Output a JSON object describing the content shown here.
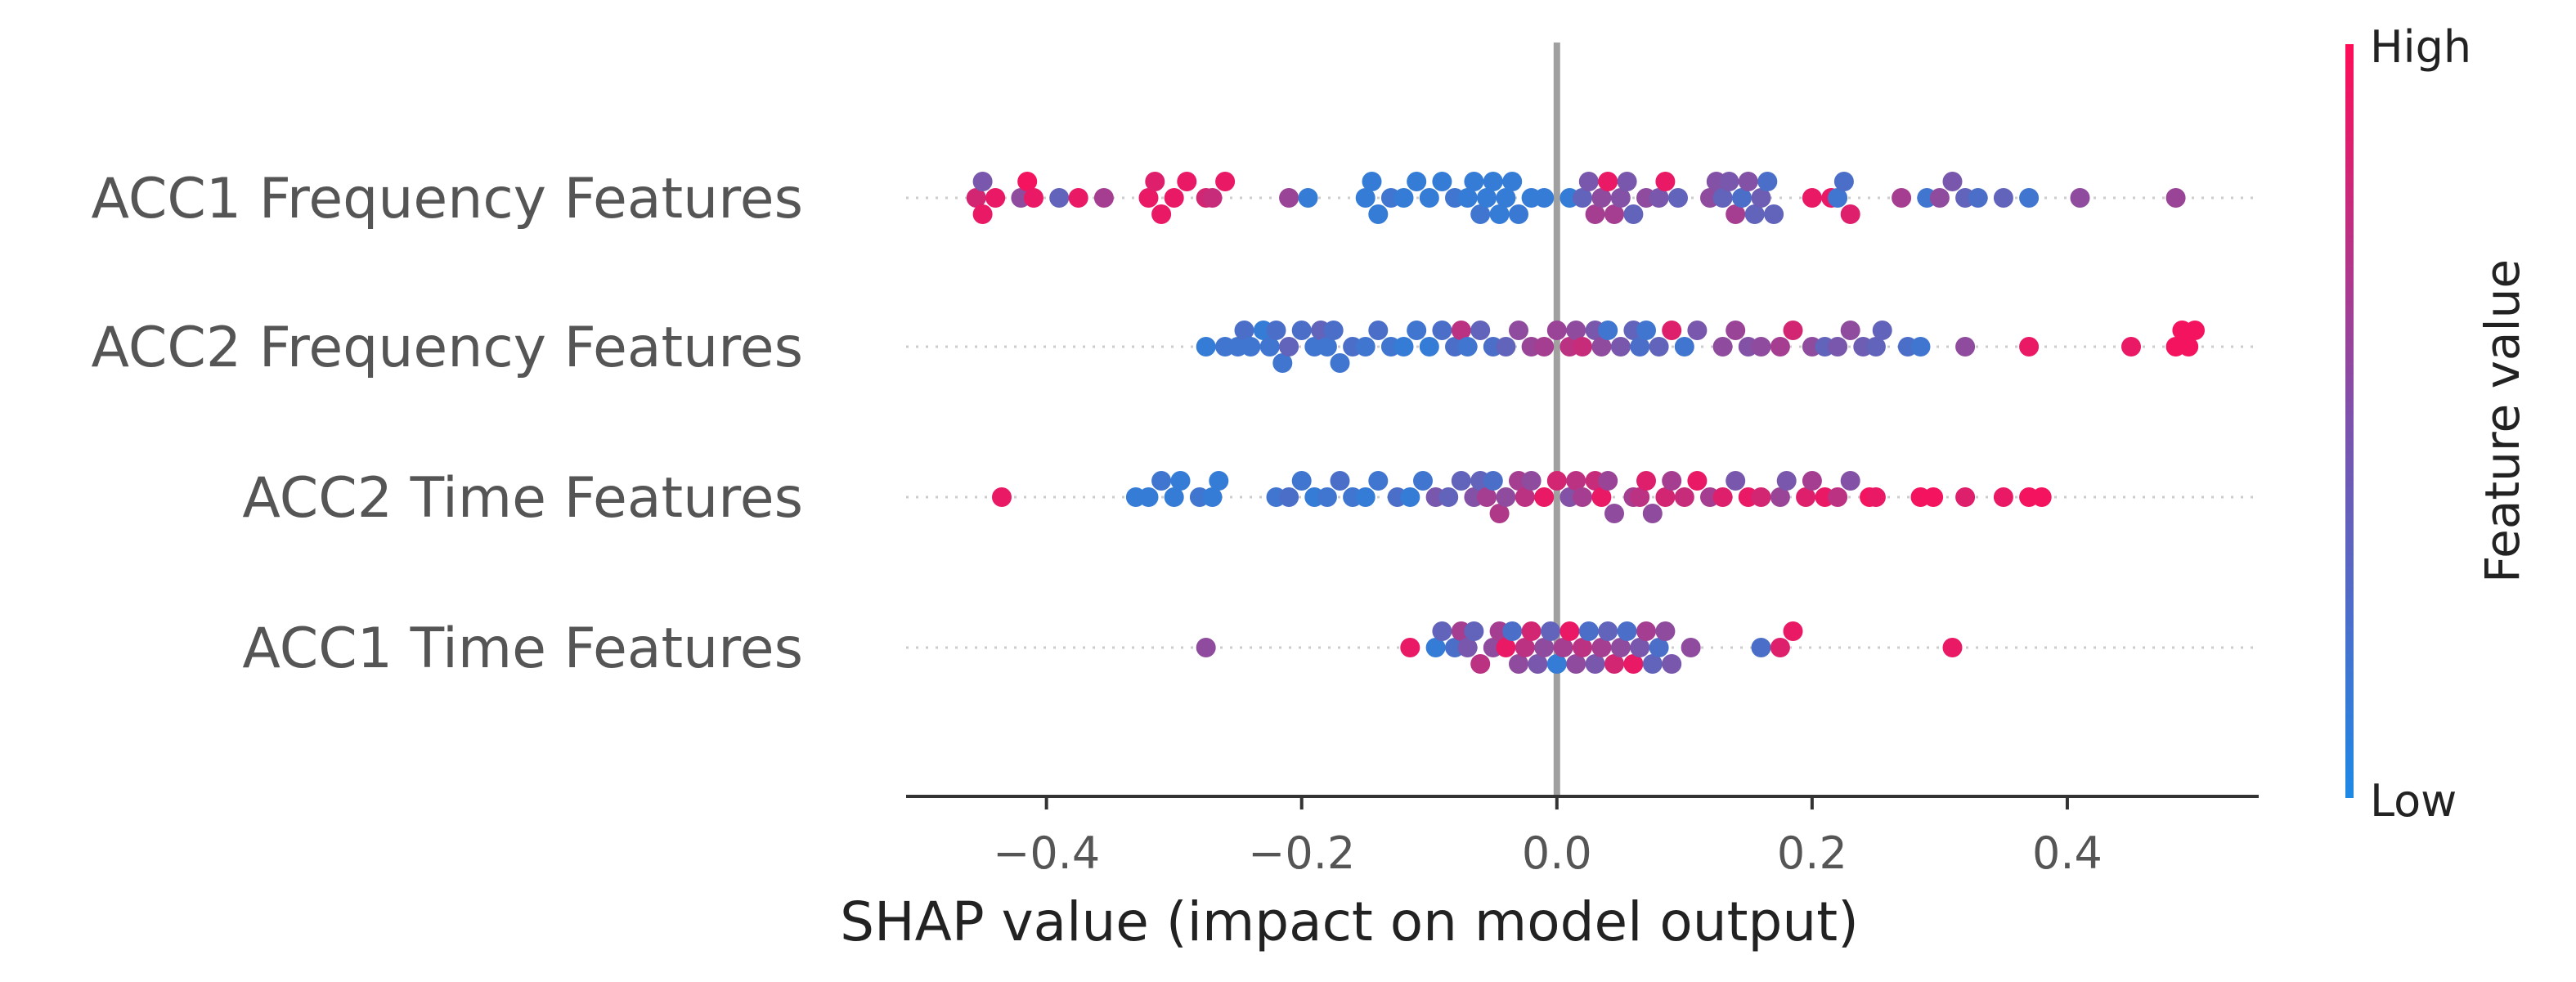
{
  "chart_data": {
    "type": "scatter",
    "subtype": "shap-beeswarm",
    "xlabel": "SHAP value (impact on model output)",
    "xlim": [
      -0.51,
      0.55
    ],
    "x_ticks": [
      {
        "value": -0.4,
        "label": "−0.4"
      },
      {
        "value": -0.2,
        "label": "−0.2"
      },
      {
        "value": 0.0,
        "label": "0.0"
      },
      {
        "value": 0.2,
        "label": "0.2"
      },
      {
        "value": 0.4,
        "label": "0.4"
      }
    ],
    "zero_line": true,
    "colorbar": {
      "title": "Feature value",
      "high_label": "High",
      "low_label": "Low",
      "high_color": "#ff0d57",
      "low_color": "#1e88e5"
    },
    "features": [
      {
        "name": "ACC1 Frequency Features",
        "points": [
          [
            -0.455,
            0.8
          ],
          [
            -0.45,
            0.4
          ],
          [
            -0.45,
            0.9
          ],
          [
            -0.44,
            0.9
          ],
          [
            -0.42,
            0.5
          ],
          [
            -0.415,
            0.95
          ],
          [
            -0.41,
            0.9
          ],
          [
            -0.39,
            0.3
          ],
          [
            -0.375,
            0.9
          ],
          [
            -0.355,
            0.6
          ],
          [
            -0.32,
            0.9
          ],
          [
            -0.315,
            0.85
          ],
          [
            -0.31,
            0.9
          ],
          [
            -0.3,
            0.9
          ],
          [
            -0.29,
            0.9
          ],
          [
            -0.275,
            0.8
          ],
          [
            -0.27,
            0.75
          ],
          [
            -0.26,
            0.9
          ],
          [
            -0.21,
            0.55
          ],
          [
            -0.195,
            0.1
          ],
          [
            -0.15,
            0.1
          ],
          [
            -0.145,
            0.1
          ],
          [
            -0.14,
            0.1
          ],
          [
            -0.13,
            0.15
          ],
          [
            -0.12,
            0.1
          ],
          [
            -0.11,
            0.1
          ],
          [
            -0.1,
            0.1
          ],
          [
            -0.09,
            0.1
          ],
          [
            -0.08,
            0.15
          ],
          [
            -0.07,
            0.1
          ],
          [
            -0.065,
            0.1
          ],
          [
            -0.06,
            0.15
          ],
          [
            -0.055,
            0.1
          ],
          [
            -0.05,
            0.1
          ],
          [
            -0.045,
            0.1
          ],
          [
            -0.04,
            0.1
          ],
          [
            -0.035,
            0.1
          ],
          [
            -0.03,
            0.12
          ],
          [
            -0.02,
            0.1
          ],
          [
            -0.01,
            0.1
          ],
          [
            0.01,
            0.1
          ],
          [
            0.02,
            0.3
          ],
          [
            0.025,
            0.4
          ],
          [
            0.03,
            0.6
          ],
          [
            0.035,
            0.5
          ],
          [
            0.04,
            0.9
          ],
          [
            0.045,
            0.6
          ],
          [
            0.05,
            0.45
          ],
          [
            0.055,
            0.4
          ],
          [
            0.06,
            0.3
          ],
          [
            0.07,
            0.5
          ],
          [
            0.08,
            0.4
          ],
          [
            0.085,
            0.9
          ],
          [
            0.095,
            0.3
          ],
          [
            0.12,
            0.5
          ],
          [
            0.125,
            0.45
          ],
          [
            0.13,
            0.3
          ],
          [
            0.135,
            0.4
          ],
          [
            0.14,
            0.6
          ],
          [
            0.145,
            0.2
          ],
          [
            0.15,
            0.45
          ],
          [
            0.155,
            0.3
          ],
          [
            0.16,
            0.35
          ],
          [
            0.165,
            0.2
          ],
          [
            0.17,
            0.3
          ],
          [
            0.2,
            0.9
          ],
          [
            0.215,
            0.9
          ],
          [
            0.22,
            0.15
          ],
          [
            0.225,
            0.2
          ],
          [
            0.23,
            0.85
          ],
          [
            0.27,
            0.6
          ],
          [
            0.29,
            0.15
          ],
          [
            0.3,
            0.5
          ],
          [
            0.31,
            0.4
          ],
          [
            0.32,
            0.3
          ],
          [
            0.33,
            0.2
          ],
          [
            0.35,
            0.3
          ],
          [
            0.37,
            0.15
          ],
          [
            0.41,
            0.5
          ],
          [
            0.485,
            0.55
          ]
        ]
      },
      {
        "name": "ACC2 Frequency Features",
        "points": [
          [
            -0.275,
            0.1
          ],
          [
            -0.26,
            0.15
          ],
          [
            -0.25,
            0.15
          ],
          [
            -0.245,
            0.2
          ],
          [
            -0.24,
            0.15
          ],
          [
            -0.23,
            0.1
          ],
          [
            -0.225,
            0.15
          ],
          [
            -0.22,
            0.2
          ],
          [
            -0.215,
            0.15
          ],
          [
            -0.21,
            0.3
          ],
          [
            -0.2,
            0.2
          ],
          [
            -0.19,
            0.15
          ],
          [
            -0.185,
            0.3
          ],
          [
            -0.18,
            0.15
          ],
          [
            -0.175,
            0.2
          ],
          [
            -0.17,
            0.15
          ],
          [
            -0.16,
            0.2
          ],
          [
            -0.15,
            0.15
          ],
          [
            -0.14,
            0.2
          ],
          [
            -0.13,
            0.15
          ],
          [
            -0.12,
            0.1
          ],
          [
            -0.11,
            0.15
          ],
          [
            -0.1,
            0.1
          ],
          [
            -0.09,
            0.2
          ],
          [
            -0.08,
            0.2
          ],
          [
            -0.075,
            0.7
          ],
          [
            -0.07,
            0.15
          ],
          [
            -0.06,
            0.3
          ],
          [
            -0.05,
            0.2
          ],
          [
            -0.04,
            0.3
          ],
          [
            -0.03,
            0.5
          ],
          [
            -0.02,
            0.55
          ],
          [
            -0.01,
            0.6
          ],
          [
            0.0,
            0.55
          ],
          [
            0.01,
            0.7
          ],
          [
            0.015,
            0.5
          ],
          [
            0.02,
            0.75
          ],
          [
            0.03,
            0.4
          ],
          [
            0.035,
            0.5
          ],
          [
            0.04,
            0.15
          ],
          [
            0.05,
            0.4
          ],
          [
            0.06,
            0.3
          ],
          [
            0.065,
            0.2
          ],
          [
            0.07,
            0.15
          ],
          [
            0.08,
            0.3
          ],
          [
            0.09,
            0.85
          ],
          [
            0.1,
            0.15
          ],
          [
            0.11,
            0.4
          ],
          [
            0.13,
            0.5
          ],
          [
            0.14,
            0.55
          ],
          [
            0.15,
            0.45
          ],
          [
            0.16,
            0.5
          ],
          [
            0.175,
            0.6
          ],
          [
            0.185,
            0.8
          ],
          [
            0.2,
            0.5
          ],
          [
            0.21,
            0.3
          ],
          [
            0.22,
            0.4
          ],
          [
            0.23,
            0.5
          ],
          [
            0.24,
            0.35
          ],
          [
            0.25,
            0.3
          ],
          [
            0.255,
            0.3
          ],
          [
            0.275,
            0.2
          ],
          [
            0.285,
            0.15
          ],
          [
            0.32,
            0.5
          ],
          [
            0.37,
            0.9
          ],
          [
            0.45,
            0.9
          ],
          [
            0.485,
            0.95
          ],
          [
            0.49,
            0.95
          ],
          [
            0.495,
            0.95
          ],
          [
            0.5,
            0.95
          ]
        ]
      },
      {
        "name": "ACC2 Time Features",
        "points": [
          [
            -0.435,
            0.9
          ],
          [
            -0.33,
            0.1
          ],
          [
            -0.32,
            0.1
          ],
          [
            -0.31,
            0.15
          ],
          [
            -0.3,
            0.1
          ],
          [
            -0.295,
            0.1
          ],
          [
            -0.28,
            0.15
          ],
          [
            -0.27,
            0.1
          ],
          [
            -0.265,
            0.1
          ],
          [
            -0.22,
            0.15
          ],
          [
            -0.21,
            0.2
          ],
          [
            -0.2,
            0.15
          ],
          [
            -0.19,
            0.1
          ],
          [
            -0.18,
            0.15
          ],
          [
            -0.17,
            0.2
          ],
          [
            -0.16,
            0.15
          ],
          [
            -0.15,
            0.1
          ],
          [
            -0.14,
            0.15
          ],
          [
            -0.125,
            0.2
          ],
          [
            -0.115,
            0.1
          ],
          [
            -0.105,
            0.15
          ],
          [
            -0.095,
            0.4
          ],
          [
            -0.085,
            0.3
          ],
          [
            -0.075,
            0.3
          ],
          [
            -0.065,
            0.45
          ],
          [
            -0.06,
            0.3
          ],
          [
            -0.055,
            0.6
          ],
          [
            -0.05,
            0.2
          ],
          [
            -0.045,
            0.65
          ],
          [
            -0.04,
            0.5
          ],
          [
            -0.03,
            0.6
          ],
          [
            -0.025,
            0.7
          ],
          [
            -0.02,
            0.5
          ],
          [
            -0.01,
            0.9
          ],
          [
            0.0,
            0.8
          ],
          [
            0.01,
            0.45
          ],
          [
            0.015,
            0.7
          ],
          [
            0.02,
            0.6
          ],
          [
            0.03,
            0.75
          ],
          [
            0.035,
            0.9
          ],
          [
            0.04,
            0.55
          ],
          [
            0.045,
            0.5
          ],
          [
            0.06,
            0.6
          ],
          [
            0.065,
            0.7
          ],
          [
            0.07,
            0.85
          ],
          [
            0.075,
            0.5
          ],
          [
            0.085,
            0.8
          ],
          [
            0.09,
            0.6
          ],
          [
            0.1,
            0.75
          ],
          [
            0.11,
            0.9
          ],
          [
            0.12,
            0.6
          ],
          [
            0.13,
            0.85
          ],
          [
            0.14,
            0.4
          ],
          [
            0.15,
            0.9
          ],
          [
            0.16,
            0.8
          ],
          [
            0.175,
            0.55
          ],
          [
            0.18,
            0.4
          ],
          [
            0.195,
            0.85
          ],
          [
            0.2,
            0.6
          ],
          [
            0.21,
            0.9
          ],
          [
            0.22,
            0.7
          ],
          [
            0.23,
            0.45
          ],
          [
            0.245,
            0.95
          ],
          [
            0.25,
            0.9
          ],
          [
            0.285,
            0.95
          ],
          [
            0.295,
            0.95
          ],
          [
            0.32,
            0.85
          ],
          [
            0.35,
            0.9
          ],
          [
            0.37,
            0.95
          ],
          [
            0.38,
            0.95
          ]
        ]
      },
      {
        "name": "ACC1 Time Features",
        "points": [
          [
            -0.275,
            0.5
          ],
          [
            -0.115,
            0.9
          ],
          [
            -0.095,
            0.1
          ],
          [
            -0.09,
            0.3
          ],
          [
            -0.08,
            0.2
          ],
          [
            -0.075,
            0.6
          ],
          [
            -0.07,
            0.4
          ],
          [
            -0.065,
            0.3
          ],
          [
            -0.06,
            0.7
          ],
          [
            -0.05,
            0.5
          ],
          [
            -0.045,
            0.6
          ],
          [
            -0.04,
            0.9
          ],
          [
            -0.035,
            0.2
          ],
          [
            -0.03,
            0.5
          ],
          [
            -0.025,
            0.7
          ],
          [
            -0.02,
            0.8
          ],
          [
            -0.015,
            0.4
          ],
          [
            -0.01,
            0.5
          ],
          [
            -0.005,
            0.3
          ],
          [
            0.0,
            0.1
          ],
          [
            0.005,
            0.6
          ],
          [
            0.01,
            0.9
          ],
          [
            0.015,
            0.5
          ],
          [
            0.02,
            0.7
          ],
          [
            0.025,
            0.2
          ],
          [
            0.03,
            0.4
          ],
          [
            0.035,
            0.6
          ],
          [
            0.04,
            0.3
          ],
          [
            0.045,
            0.8
          ],
          [
            0.05,
            0.5
          ],
          [
            0.055,
            0.2
          ],
          [
            0.06,
            0.9
          ],
          [
            0.065,
            0.4
          ],
          [
            0.07,
            0.6
          ],
          [
            0.075,
            0.3
          ],
          [
            0.08,
            0.2
          ],
          [
            0.085,
            0.5
          ],
          [
            0.09,
            0.4
          ],
          [
            0.105,
            0.5
          ],
          [
            0.16,
            0.2
          ],
          [
            0.175,
            0.85
          ],
          [
            0.185,
            0.9
          ],
          [
            0.31,
            0.9
          ]
        ]
      }
    ]
  }
}
